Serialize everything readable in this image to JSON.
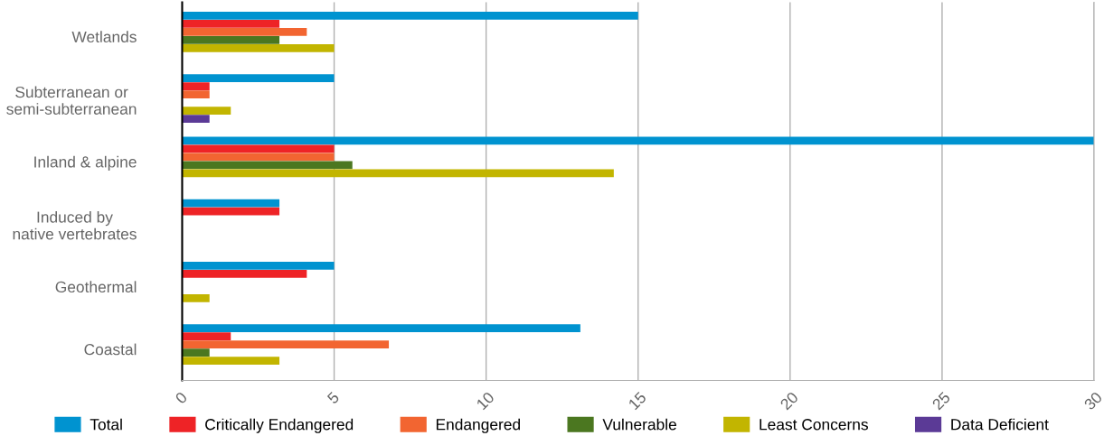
{
  "chart_data": {
    "type": "bar",
    "orientation": "horizontal",
    "categories": [
      "Wetlands",
      "Subterranean or\nsemi-subterranean",
      "Inland & alpine",
      "Induced by\nnative vertebrates",
      "Geothermal",
      "Coastal"
    ],
    "series": [
      {
        "name": "Total",
        "color": "#0093d0",
        "values": [
          15,
          5,
          30,
          3.2,
          5,
          13.1
        ]
      },
      {
        "name": "Critically Endangered",
        "color": "#ee2326",
        "values": [
          3.2,
          0.9,
          5,
          3.2,
          4.1,
          1.6
        ]
      },
      {
        "name": "Endangered",
        "color": "#f26531",
        "values": [
          4.1,
          0.9,
          5,
          0,
          0,
          6.8
        ]
      },
      {
        "name": "Vulnerable",
        "color": "#4b7720",
        "values": [
          3.2,
          0,
          5.6,
          0,
          0,
          0.9
        ]
      },
      {
        "name": "Least Concerns",
        "color": "#c2b500",
        "values": [
          5,
          1.6,
          14.2,
          0,
          0.9,
          3.2
        ]
      },
      {
        "name": "Data Deficient",
        "color": "#5b3a96",
        "values": [
          0,
          0.9,
          0,
          0,
          0,
          0
        ]
      }
    ],
    "xlim": [
      0,
      30
    ],
    "xticks": [
      0,
      5,
      10,
      15,
      20,
      25,
      30
    ],
    "grid": "x",
    "legend": "bottom"
  }
}
